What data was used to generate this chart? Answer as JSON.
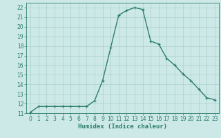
{
  "x": [
    0,
    1,
    2,
    3,
    4,
    5,
    6,
    7,
    8,
    9,
    10,
    11,
    12,
    13,
    14,
    15,
    16,
    17,
    18,
    19,
    20,
    21,
    22,
    23
  ],
  "y": [
    11.1,
    11.7,
    11.7,
    11.7,
    11.7,
    11.7,
    11.7,
    11.7,
    12.3,
    14.4,
    17.8,
    21.2,
    21.7,
    22.0,
    21.8,
    18.5,
    18.2,
    16.7,
    16.0,
    15.1,
    14.4,
    13.5,
    12.6,
    12.4
  ],
  "line_color": "#2e7d6e",
  "marker": "+",
  "marker_size": 3,
  "bg_color": "#cce9e7",
  "grid_color": "#aacfcd",
  "xlabel": "Humidex (Indice chaleur)",
  "xlim": [
    -0.5,
    23.5
  ],
  "ylim": [
    11,
    22.5
  ],
  "yticks": [
    11,
    12,
    13,
    14,
    15,
    16,
    17,
    18,
    19,
    20,
    21,
    22
  ],
  "xticks": [
    0,
    1,
    2,
    3,
    4,
    5,
    6,
    7,
    8,
    9,
    10,
    11,
    12,
    13,
    14,
    15,
    16,
    17,
    18,
    19,
    20,
    21,
    22,
    23
  ],
  "tick_color": "#2e7d6e",
  "tick_fontsize": 5.5,
  "xlabel_fontsize": 6.5,
  "line_width": 1.0
}
